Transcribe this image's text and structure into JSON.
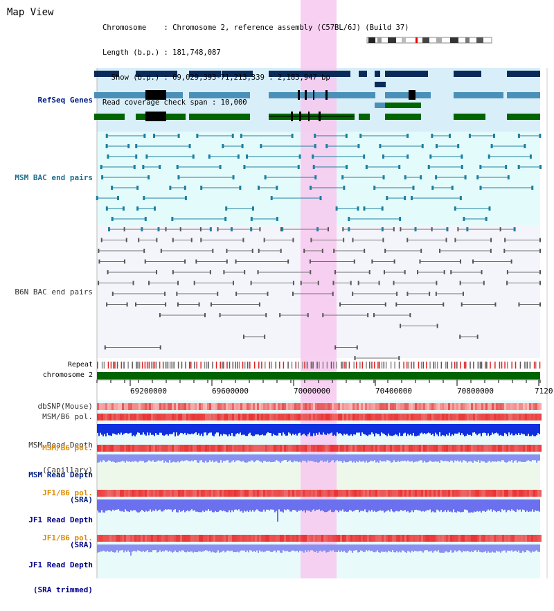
{
  "window_title": "Map View",
  "info": {
    "chromosome": "Chromosome    : Chromosome 2, reference assembly (C57BL/6J) (Build 37)",
    "length": "Length (b.p.) : 181,748,087",
    "show": "  Show (b.p.) : 69,029,393-71,213,339 : 2,183,947 bp",
    "coverage": "Read coverage check span : 10,000"
  },
  "tracks": {
    "refseq": "RefSeq Genes",
    "msm_bac": "MSM BAC end pairs",
    "b6n_bac": "B6N BAC end pairs",
    "repeat": "Repeat",
    "chromosome": "chromosome 2",
    "dbsnp": "dbSNP(Mouse)",
    "msm_b6_pol": "MSM/B6 pol.",
    "msm_depth_cap_1": "MSM Read Depth",
    "msm_depth_cap_2": "(Capillary)",
    "msm_b6_pol_sra": "MSM/B6 pol.",
    "msm_depth_sra_1": "MSM Read Depth",
    "msm_depth_sra_2": "(SRA)",
    "jf1_b6_pol": "JF1/B6 pol.",
    "jf1_depth_sra_1": "JF1 Read Depth",
    "jf1_depth_sra_2": "(SRA)",
    "jf1_b6_pol_2": "JF1/B6 pol.",
    "jf1_depth_trim_1": "JF1 Read Depth",
    "jf1_depth_trim_2": "(SRA trimmed)"
  },
  "axis_ticks": [
    "69200000",
    "69600000",
    "70000000",
    "70400000",
    "70800000",
    "7120"
  ],
  "colors": {
    "highlight": "#f7c8ef",
    "refseq_bg": "#d8eef8",
    "msm_bac_bg": "#e4fbfb",
    "b6n_bg": "#f4f4fb",
    "navy_gene": "#0a2a5a",
    "teal_gene": "#4a90b8",
    "green_gene": "#006400",
    "msm_bac_line": "#1e7fa0",
    "b6n_line": "#707070",
    "chrom_bar": "#006400"
  }
}
